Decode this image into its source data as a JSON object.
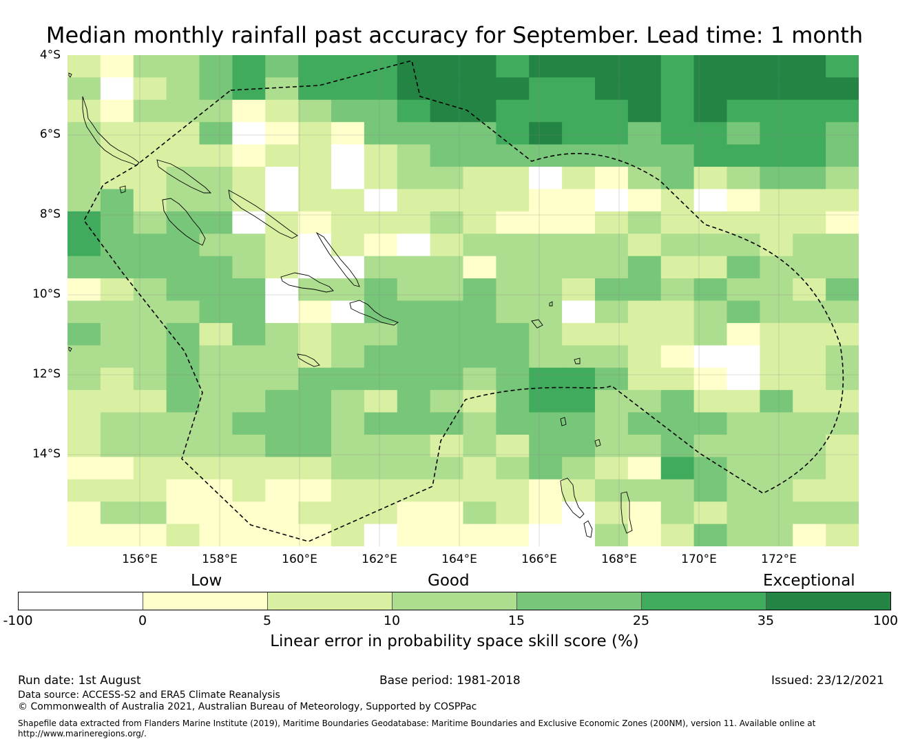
{
  "title": "Median monthly rainfall past accuracy for September. Lead time: 1 month",
  "map": {
    "region_extent": {
      "lon_min": 154.2,
      "lon_max": 174.0,
      "lat_top": -4.0,
      "lat_bottom": -16.2
    },
    "cell_size_deg": 0.83,
    "lat_ticks": [
      "4°S",
      "6°S",
      "8°S",
      "10°S",
      "12°S",
      "14°S"
    ],
    "lon_ticks": [
      "156°E",
      "158°E",
      "160°E",
      "162°E",
      "164°E",
      "166°E",
      "168°E",
      "170°E",
      "172°E"
    ],
    "boundary_style": "dashed black line (EEZ outline)",
    "coastline_style": "thin black outline",
    "grid": "light grey lines at tick positions",
    "skill_category_grid": [
      "2,1,3,3,4,5,4,5,5,5,6,6,6,5,6,6,6,6,5,6,6,6,6,5",
      "3,0,2,3,4,5,3,5,5,5,6,6,6,6,5,5,6,6,5,6,6,6,6,6",
      "2,1,3,3,3,1,2,3,4,4,5,6,6,5,5,5,5,6,5,6,5,5,5,5",
      "3,2,2,2,4,0,1,2,1,4,4,4,4,5,6,5,5,4,5,5,4,5,5,4",
      "3,2,2,2,2,1,2,2,0,2,3,4,4,4,4,4,4,4,4,5,5,5,5,4",
      "3,2,2,3,3,2,0,2,0,2,3,3,2,2,0,2,1,3,4,2,3,4,4,3",
      "3,4,2,3,3,2,0,2,2,0,2,2,2,2,1,1,0,1,2,0,1,2,2,2",
      "5,4,3,4,4,0,2,1,2,2,2,3,2,1,1,1,2,3,2,2,2,2,2,1",
      "5,4,4,4,3,3,2,0,2,1,0,2,3,3,3,3,3,2,3,3,3,2,3,3",
      "4,4,4,4,4,3,2,0,0,3,3,3,1,3,3,3,3,4,2,2,4,3,3,3",
      "1,2,3,4,4,4,0,3,3,4,3,3,4,3,3,2,4,4,3,4,3,3,2,4",
      "3,3,3,3,4,4,0,1,0,4,4,4,4,3,3,0,3,2,2,3,4,3,3,3",
      "4,3,3,4,2,4,3,2,3,3,4,4,4,4,3,2,2,2,2,3,1,2,2,2",
      "3,3,3,4,3,3,3,2,3,4,4,4,4,4,3,3,3,2,1,0,0,2,2,3",
      "3,2,3,4,3,3,3,4,4,4,4,4,3,4,5,5,4,2,2,1,0,2,2,3",
      "2,2,2,4,3,3,4,4,3,2,4,3,2,4,5,5,3,3,4,2,2,4,2,2",
      "2,3,3,3,3,4,4,4,3,4,4,4,3,4,4,4,3,4,4,4,3,3,3,3",
      "2,3,3,3,3,3,4,4,3,3,3,2,3,2,4,4,3,3,4,3,3,3,3,2",
      "1,1,2,2,2,2,2,2,3,3,3,3,2,3,4,3,2,1,5,4,3,3,3,2",
      "2,2,2,1,1,2,1,1,2,2,2,2,2,2,1,2,3,3,3,4,3,3,2,2",
      "1,3,3,1,1,1,1,2,2,2,1,1,3,2,1,0,2,1,3,2,3,3,3,3",
      "1,1,1,2,1,1,1,1,2,0,1,1,1,1,0,0,3,1,2,4,3,3,1,2"
    ]
  },
  "categories": {
    "low": "Low",
    "good": "Good",
    "exceptional": "Exceptional"
  },
  "colorbar": {
    "colors": [
      "#ffffff",
      "#ffffcc",
      "#d9f0a3",
      "#addd8e",
      "#78c679",
      "#41ab5d",
      "#238443"
    ],
    "ticks": [
      "-100",
      "0",
      "5",
      "10",
      "15",
      "25",
      "35",
      "100"
    ],
    "label": "Linear error in probability space skill score (%)"
  },
  "footer": {
    "run_date": "Run date: 1st August",
    "base_period": "Base period: 1981-2018",
    "issued": "Issued: 23/12/2021",
    "data_source": "Data source: ACCESS-S2 and ERA5 Climate Reanalysis",
    "copyright": "© Commonwealth of Australia 2021, Australian Bureau of Meteorology, Supported by COSPPac",
    "shapefile_line1": "Shapefile data extracted from Flanders Marine Institute (2019), Maritime Boundaries Geodatabase: Maritime Boundaries and Exclusive Economic Zones (200NM), version 11. Available online at",
    "shapefile_line2": "http://www.marineregions.org/."
  }
}
